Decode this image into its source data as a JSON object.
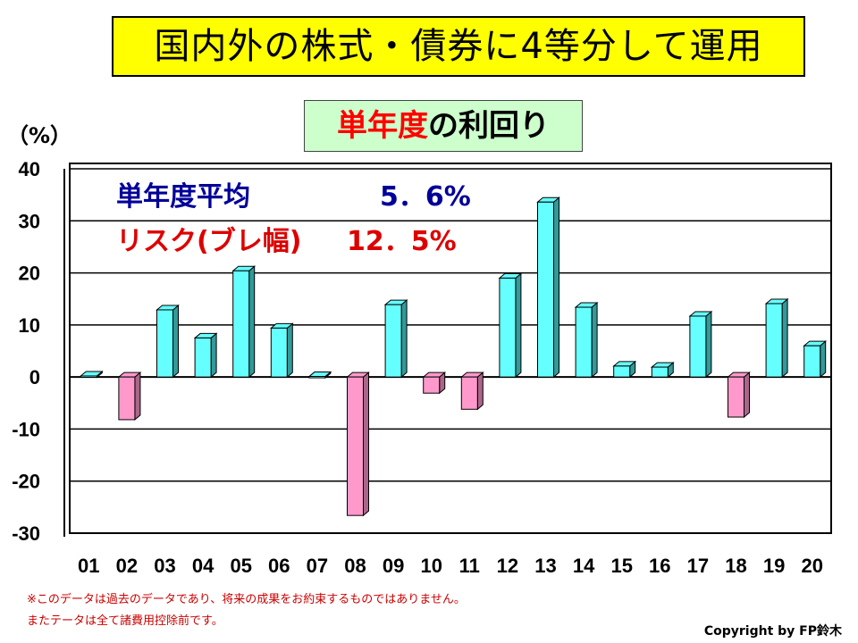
{
  "title": "国内外の株式・債券に4等分して運用",
  "subtitle": {
    "red": "単年度",
    "black": "の利回り"
  },
  "unit": "（%）",
  "annotations": {
    "avg_label": "単年度平均",
    "avg_value": "5．6%",
    "risk_label": "リスク(ブレ幅)",
    "risk_value": "12．5%"
  },
  "footnotes": [
    "※このデータは過去のデータであり、将来の成果をお約束するものではありません。",
    "またテータは全て諸費用控除前です。"
  ],
  "copyright": "Copyright by FP鈴木",
  "colors": {
    "positive": "#66ffff",
    "negative": "#ff99cc",
    "avg": "#000099",
    "risk": "#dd0000"
  },
  "chart_data": {
    "type": "bar",
    "title": "単年度の利回り",
    "ylabel": "（%）",
    "xlabel": "",
    "ylim": [
      -30,
      40
    ],
    "yticks": [
      40,
      30,
      20,
      10,
      0,
      -10,
      -20,
      -30
    ],
    "ytick_labels": [
      "40",
      "30",
      "20",
      "10",
      "0",
      "-10",
      "-20",
      "-30"
    ],
    "grid": true,
    "categories": [
      "01",
      "02",
      "03",
      "04",
      "05",
      "06",
      "07",
      "08",
      "09",
      "10",
      "11",
      "12",
      "13",
      "14",
      "15",
      "16",
      "17",
      "18",
      "19",
      "20"
    ],
    "values": [
      0.2,
      -8.2,
      12.9,
      7.5,
      20.4,
      9.4,
      0.1,
      -26.6,
      13.9,
      -3.1,
      -6.2,
      19.0,
      33.6,
      13.4,
      2.1,
      1.9,
      11.7,
      -7.7,
      14.1,
      6.0
    ]
  }
}
